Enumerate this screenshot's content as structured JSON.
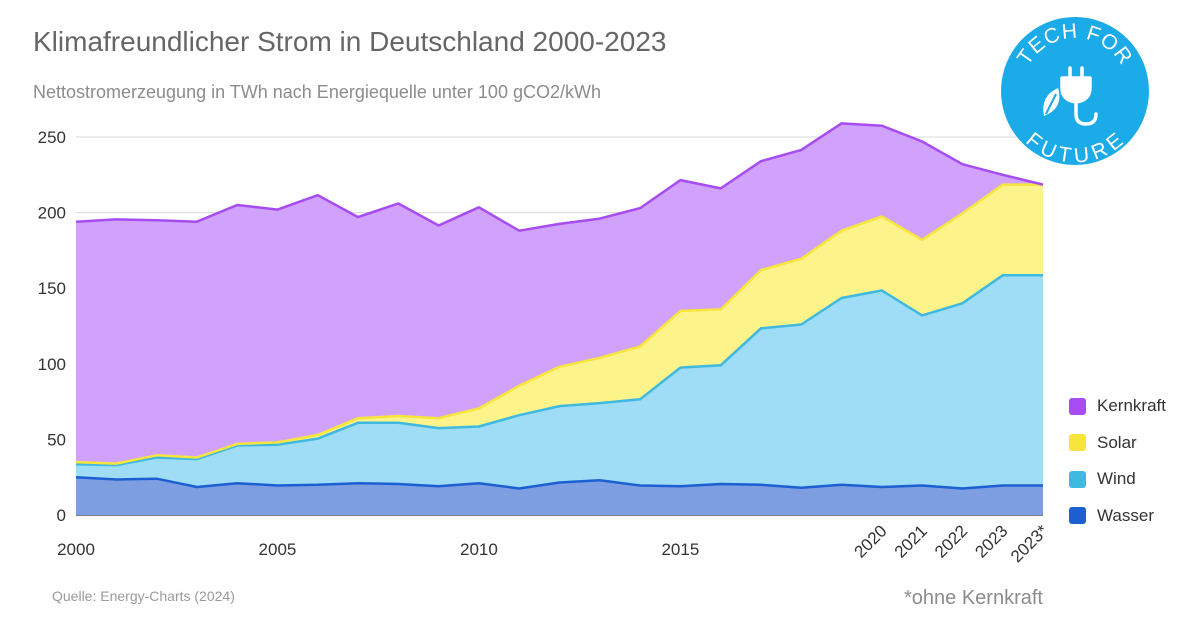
{
  "title": "Klimafreundlicher Strom in Deutschland 2000-2023",
  "subtitle": "Nettostromerzeugung in TWh nach Energiequelle unter 100 gCO2/kWh",
  "source": "Quelle: Energy-Charts (2024)",
  "footnote": "*ohne Kernkraft",
  "logo": {
    "top_text": "TECH FOR",
    "bottom_text": "FUTURE",
    "color": "#1aabe8"
  },
  "chart_data": {
    "type": "area",
    "stacked": true,
    "title": "Klimafreundlicher Strom in Deutschland 2000-2023",
    "subtitle": "Nettostromerzeugung in TWh nach Energiequelle unter 100 gCO2/kWh",
    "xlabel": "",
    "ylabel": "",
    "ylim": [
      0,
      250
    ],
    "y_ticks": [
      0,
      50,
      100,
      150,
      200,
      250
    ],
    "grid": true,
    "legend_position": "right",
    "x": [
      "2000",
      "2001",
      "2002",
      "2003",
      "2004",
      "2005",
      "2006",
      "2007",
      "2008",
      "2009",
      "2010",
      "2011",
      "2012",
      "2013",
      "2014",
      "2015",
      "2016",
      "2017",
      "2018",
      "2019",
      "2020",
      "2021",
      "2022",
      "2023",
      "2023*"
    ],
    "x_tick_labels": [
      {
        "index": 0,
        "label": "2000",
        "rotated": false
      },
      {
        "index": 5,
        "label": "2005",
        "rotated": false
      },
      {
        "index": 10,
        "label": "2010",
        "rotated": false
      },
      {
        "index": 15,
        "label": "2015",
        "rotated": false
      },
      {
        "index": 20,
        "label": "2020",
        "rotated": true
      },
      {
        "index": 21,
        "label": "2021",
        "rotated": true
      },
      {
        "index": 22,
        "label": "2022",
        "rotated": true
      },
      {
        "index": 23,
        "label": "2023",
        "rotated": true
      },
      {
        "index": 24,
        "label": "2023*",
        "rotated": true
      }
    ],
    "series": [
      {
        "name": "Wasser",
        "fill": "#7e9ee2",
        "line": "#1c5fd1",
        "values": [
          25,
          23.5,
          24,
          18.5,
          21,
          19.5,
          20,
          21,
          20.5,
          19,
          21,
          17.5,
          21.5,
          23,
          19.5,
          19,
          20.5,
          20,
          18,
          20,
          18.5,
          19.5,
          17.5,
          19.5,
          19.5
        ]
      },
      {
        "name": "Wind",
        "fill": "#9fdcf5",
        "line": "#3fb9df",
        "values": [
          8.5,
          9.5,
          14,
          18.5,
          25,
          27,
          30.5,
          40,
          40.5,
          38.5,
          37.5,
          48.5,
          50.5,
          51,
          57,
          78.5,
          78.5,
          103.5,
          108,
          123.5,
          130,
          112.5,
          122.5,
          139,
          139
        ]
      },
      {
        "name": "Solar",
        "fill": "#fdf38b",
        "line": "#f7e43c",
        "values": [
          1.5,
          1,
          1.5,
          1,
          1,
          1.5,
          2.5,
          3,
          4.5,
          6.5,
          12,
          19.5,
          26,
          30,
          35,
          37.5,
          37,
          38.5,
          43.5,
          44.5,
          49,
          50,
          59.5,
          60,
          60
        ]
      },
      {
        "name": "Kernkraft",
        "fill": "#d0a2fc",
        "line": "#a64cf0",
        "values": [
          159,
          161.5,
          155.5,
          156,
          158,
          154,
          158.5,
          133,
          140.5,
          127.5,
          133,
          102.5,
          94.5,
          92,
          91.5,
          86.5,
          80,
          72,
          72,
          71,
          60,
          65,
          32.5,
          6.5,
          0
        ]
      }
    ]
  }
}
